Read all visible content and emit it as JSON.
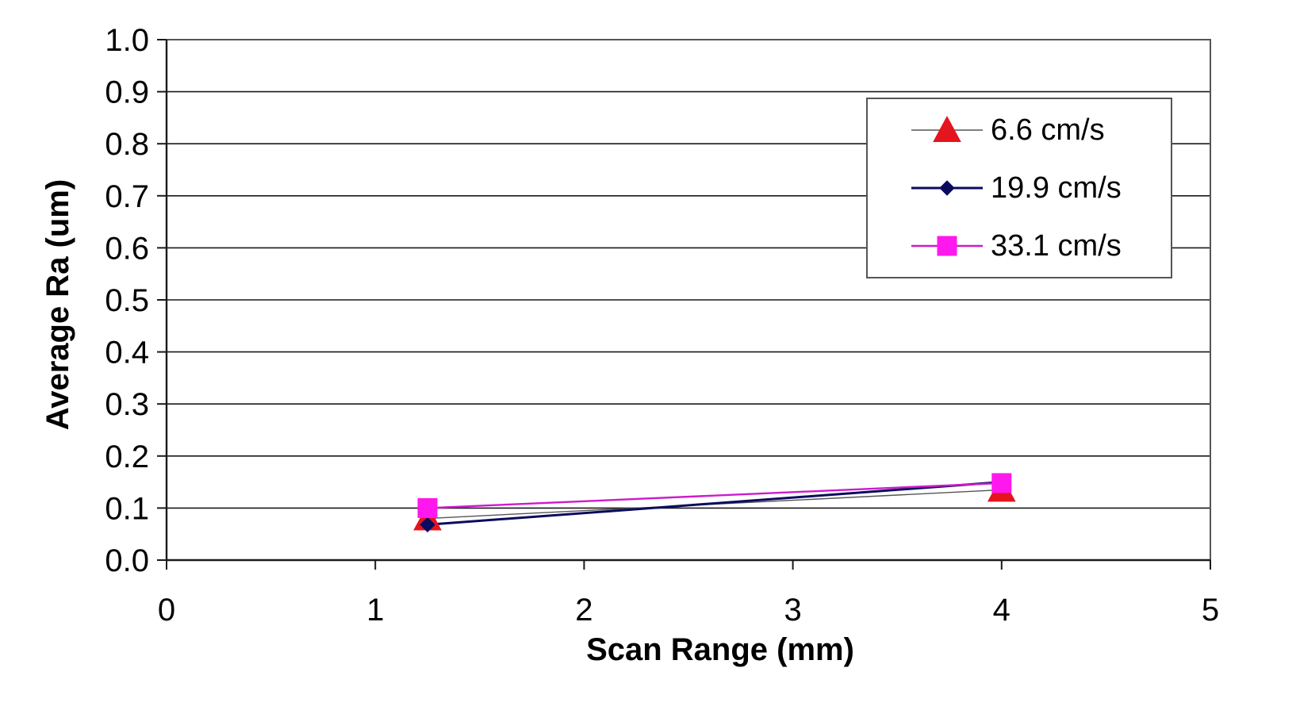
{
  "chart_data": {
    "type": "line",
    "title": "",
    "xlabel": "Scan Range (mm)",
    "ylabel": "Average Ra (um)",
    "xlim": [
      0,
      5
    ],
    "ylim": [
      0.0,
      1.0
    ],
    "x_ticks": [
      "0",
      "1",
      "2",
      "3",
      "4",
      "5"
    ],
    "y_ticks": [
      "0.0",
      "0.1",
      "0.2",
      "0.3",
      "0.4",
      "0.5",
      "0.6",
      "0.7",
      "0.8",
      "0.9",
      "1.0"
    ],
    "grid": "horizontal",
    "legend_position": "top-right",
    "series": [
      {
        "name": "6.6 cm/s",
        "color": "#e4151d",
        "line_color": "#555555",
        "marker": "triangle",
        "x": [
          1.25,
          4
        ],
        "y": [
          0.08,
          0.135
        ]
      },
      {
        "name": "19.9 cm/s",
        "color": "#0b0b5e",
        "line_color": "#0b0b5e",
        "marker": "diamond",
        "x": [
          1.25,
          4
        ],
        "y": [
          0.068,
          0.15
        ]
      },
      {
        "name": "33.1 cm/s",
        "color": "#ff18ee",
        "line_color": "#cc1ccc",
        "marker": "square",
        "x": [
          1.25,
          4
        ],
        "y": [
          0.1,
          0.148
        ]
      }
    ]
  }
}
